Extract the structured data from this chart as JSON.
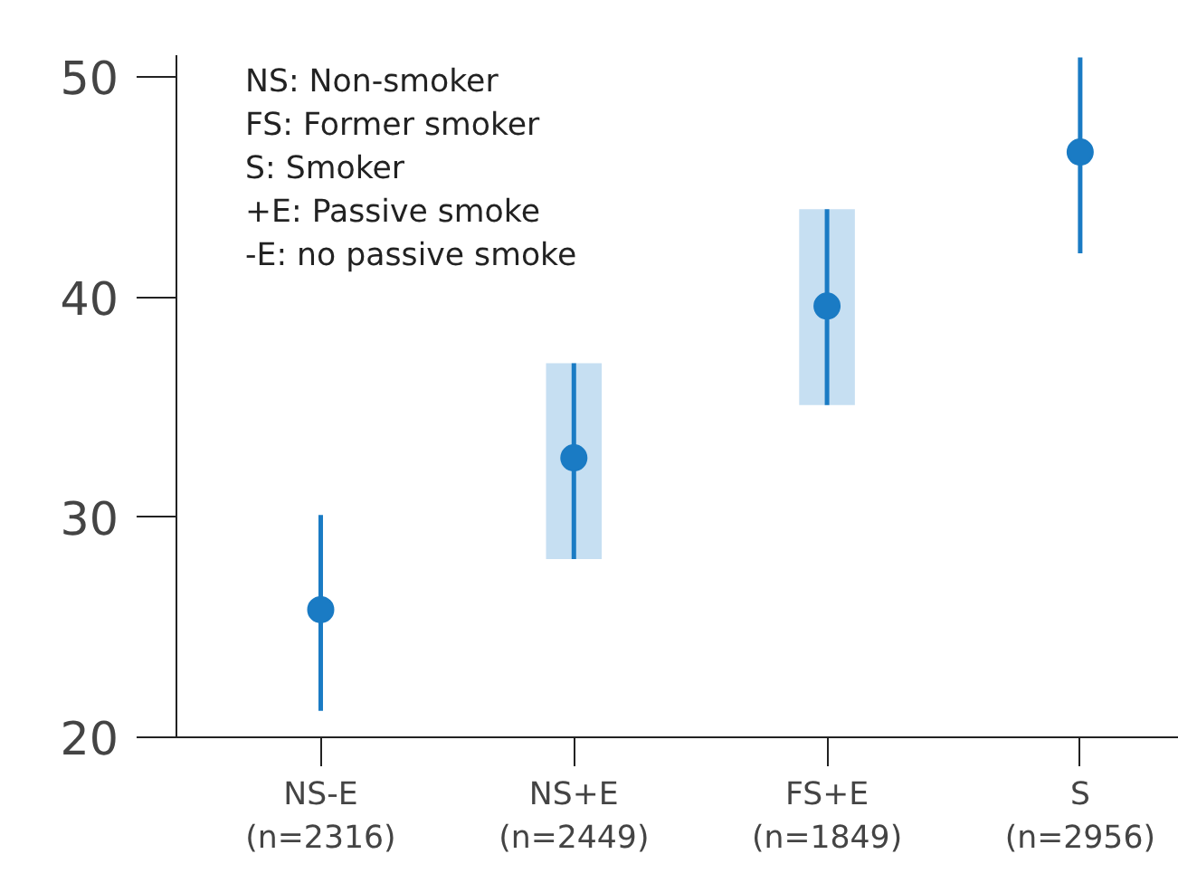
{
  "chart_data": {
    "type": "scatter",
    "categories": [
      "NS-E\n(n=2316)",
      "NS+E\n(n=2449)",
      "FS+E\n(n=1849)",
      "S\n(n=2956)"
    ],
    "series": [
      {
        "type": "bar",
        "color": "#c6dff2",
        "base": [
          null,
          28.1,
          35.1,
          null
        ],
        "values": [
          null,
          8.9,
          8.9,
          null
        ]
      },
      {
        "color": "#1a7bc4",
        "values": [
          25.8,
          32.7,
          39.6,
          46.6
        ],
        "errors": [
          [
            21.2,
            30.1
          ],
          [
            28.1,
            37.0
          ],
          [
            35.1,
            44.0
          ],
          [
            42.0,
            50.9
          ]
        ]
      }
    ],
    "ylim": [
      20,
      51
    ],
    "yticks": [
      20,
      30,
      40,
      50
    ],
    "grid": false,
    "marker": "circle",
    "annotations": [
      "NS: Non-smoker",
      "FS: Former smoker",
      "S: Smoker",
      "+E: Passive smoke",
      "-E: no passive smoke"
    ]
  }
}
